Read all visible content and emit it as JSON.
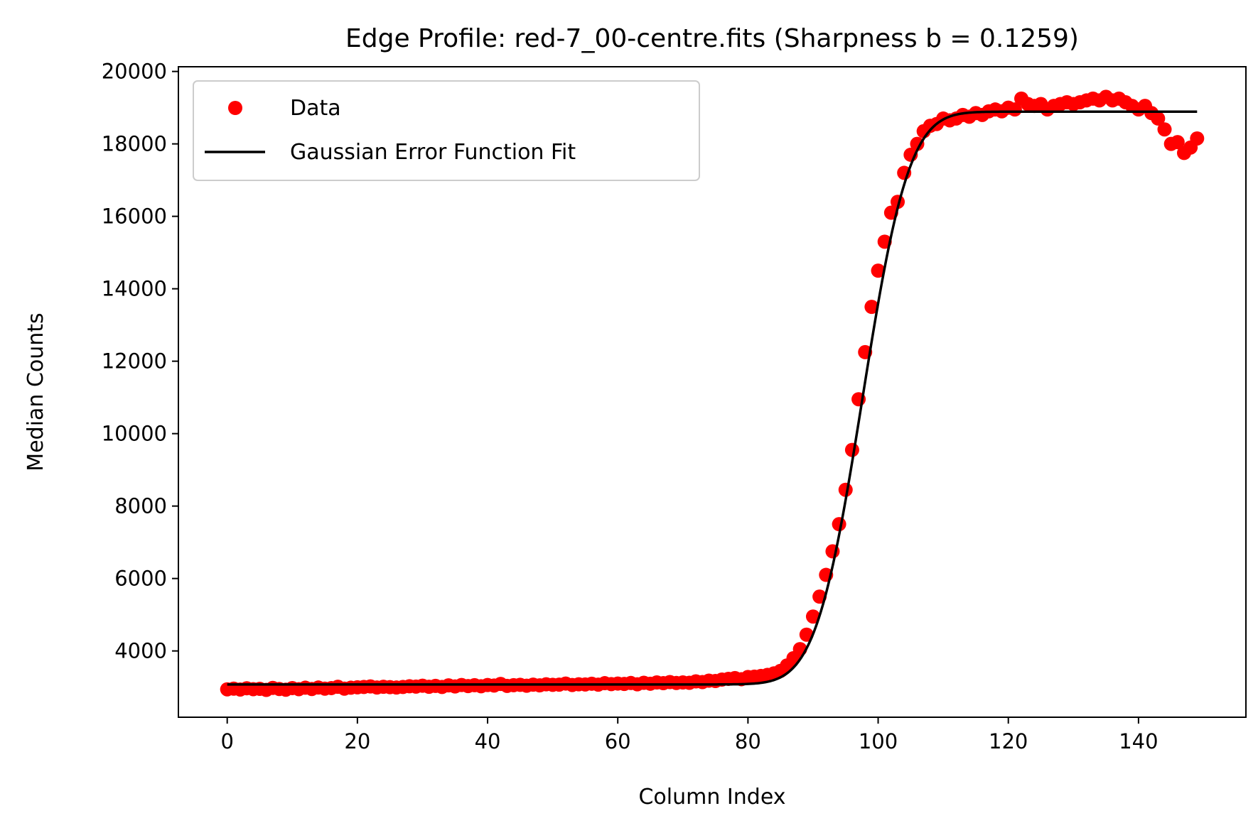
{
  "chart_data": {
    "type": "scatter",
    "title": "Edge Profile: red-7_00-centre.fits (Sharpness b = 0.1259)",
    "xlabel": "Column Index",
    "ylabel": "Median Counts",
    "xlim": [
      -7.5,
      156.5
    ],
    "ylim": [
      2170,
      20130
    ],
    "x_ticks": [
      0,
      20,
      40,
      60,
      80,
      100,
      120,
      140
    ],
    "y_ticks": [
      4000,
      6000,
      8000,
      10000,
      12000,
      14000,
      16000,
      18000,
      20000
    ],
    "grid": false,
    "legend_position": "top-left",
    "series": [
      {
        "name": "Data",
        "kind": "scatter",
        "color": "#ff0000",
        "x": [
          0,
          1,
          2,
          3,
          4,
          5,
          6,
          7,
          8,
          9,
          10,
          11,
          12,
          13,
          14,
          15,
          16,
          17,
          18,
          19,
          20,
          21,
          22,
          23,
          24,
          25,
          26,
          27,
          28,
          29,
          30,
          31,
          32,
          33,
          34,
          35,
          36,
          37,
          38,
          39,
          40,
          41,
          42,
          43,
          44,
          45,
          46,
          47,
          48,
          49,
          50,
          51,
          52,
          53,
          54,
          55,
          56,
          57,
          58,
          59,
          60,
          61,
          62,
          63,
          64,
          65,
          66,
          67,
          68,
          69,
          70,
          71,
          72,
          73,
          74,
          75,
          76,
          77,
          78,
          79,
          80,
          81,
          82,
          83,
          84,
          85,
          86,
          87,
          88,
          89,
          90,
          91,
          92,
          93,
          94,
          95,
          96,
          97,
          98,
          99,
          100,
          101,
          102,
          103,
          104,
          105,
          106,
          107,
          108,
          109,
          110,
          111,
          112,
          113,
          114,
          115,
          116,
          117,
          118,
          119,
          120,
          121,
          122,
          123,
          124,
          125,
          126,
          127,
          128,
          129,
          130,
          131,
          132,
          133,
          134,
          135,
          136,
          137,
          138,
          139,
          140,
          141,
          142,
          143,
          144,
          145,
          146,
          147,
          148,
          149
        ],
        "y": [
          2940,
          2960,
          2935,
          2970,
          2945,
          2955,
          2925,
          2980,
          2950,
          2930,
          2975,
          2945,
          2985,
          2950,
          2990,
          2960,
          2975,
          3010,
          2960,
          2985,
          2995,
          3005,
          3020,
          2990,
          3010,
          3000,
          2990,
          3005,
          3025,
          3015,
          3040,
          3010,
          3035,
          3005,
          3050,
          3020,
          3060,
          3030,
          3055,
          3025,
          3060,
          3045,
          3090,
          3035,
          3055,
          3065,
          3040,
          3070,
          3050,
          3080,
          3065,
          3070,
          3100,
          3060,
          3080,
          3075,
          3095,
          3070,
          3110,
          3085,
          3100,
          3090,
          3115,
          3080,
          3120,
          3095,
          3130,
          3110,
          3140,
          3115,
          3130,
          3120,
          3160,
          3140,
          3180,
          3170,
          3210,
          3230,
          3250,
          3220,
          3280,
          3290,
          3310,
          3340,
          3380,
          3450,
          3600,
          3800,
          4050,
          4450,
          4950,
          5500,
          6100,
          6750,
          7500,
          8450,
          9550,
          10950,
          12250,
          13500,
          14500,
          15300,
          16100,
          16400,
          17200,
          17700,
          18000,
          18350,
          18500,
          18550,
          18700,
          18650,
          18700,
          18800,
          18750,
          18850,
          18800,
          18900,
          18950,
          18900,
          19000,
          18950,
          19250,
          19100,
          19050,
          19100,
          18950,
          19050,
          19100,
          19150,
          19100,
          19150,
          19200,
          19250,
          19200,
          19300,
          19200,
          19250,
          19150,
          19050,
          18950,
          19050,
          18850,
          18700,
          18400,
          18000,
          18050,
          17750,
          17900,
          18150
        ]
      },
      {
        "name": "Gaussian Error Function Fit",
        "kind": "erf-fit",
        "color": "#000000",
        "low": 3075,
        "high": 18890,
        "center": 97.6,
        "b": 0.1259
      }
    ]
  }
}
